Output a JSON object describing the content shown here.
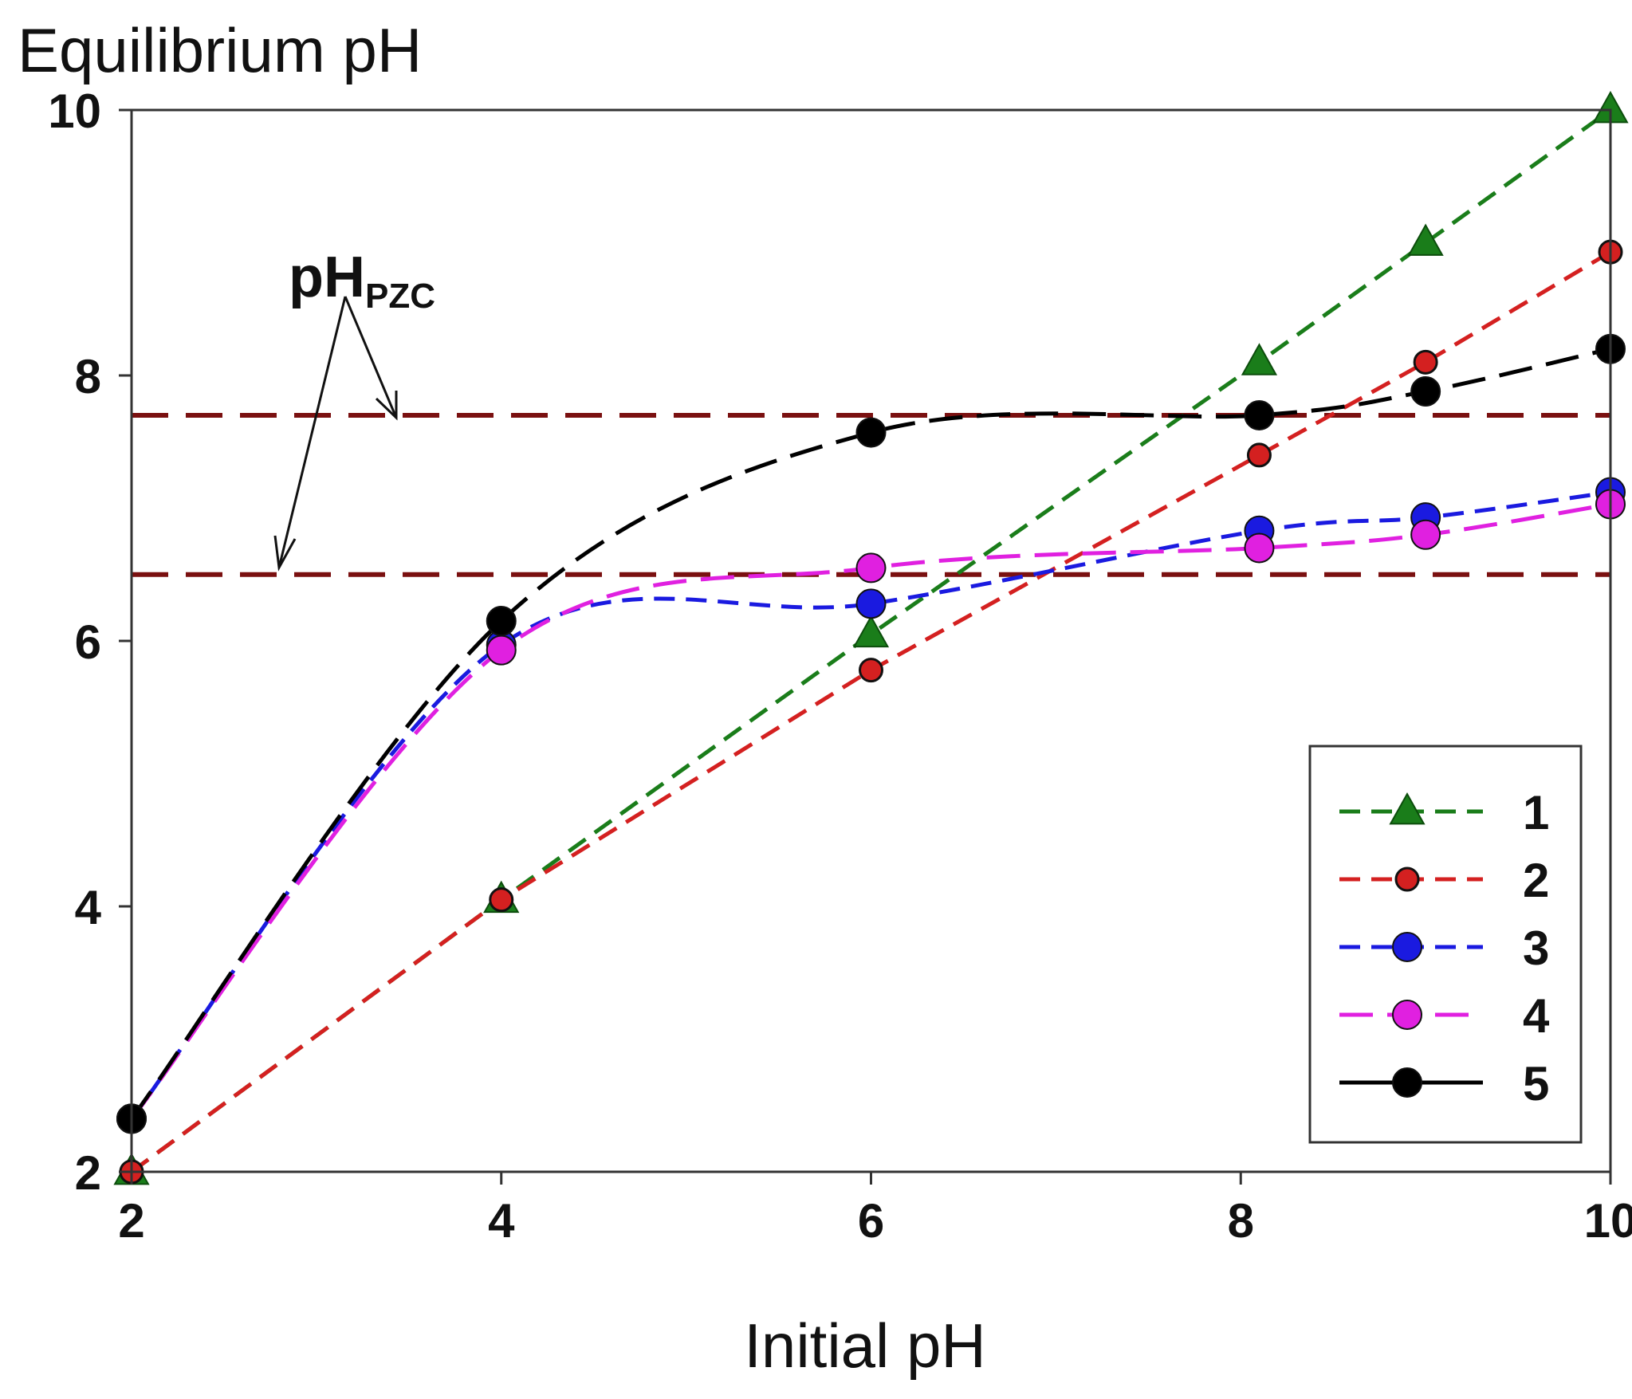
{
  "chart_data": {
    "type": "line",
    "xlabel": "Initial pH",
    "ylabel": "Equilibrium pH",
    "xlim": [
      2,
      10
    ],
    "ylim": [
      2,
      10
    ],
    "xticks": [
      "2",
      "4",
      "6",
      "8",
      "10"
    ],
    "yticks": [
      "2",
      "4",
      "6",
      "8",
      "10"
    ],
    "x_tick_values": [
      2,
      4,
      6,
      8,
      10
    ],
    "y_tick_values": [
      2,
      4,
      6,
      8,
      10
    ],
    "grid": false,
    "legend_position": "bottom-right",
    "annotation": {
      "text_main": "pH",
      "text_sub": "PZC",
      "reference_lines_y": [
        7.7,
        6.5
      ]
    },
    "series": [
      {
        "name": "1",
        "color": "#1a7d1a",
        "marker": "triangle",
        "line_style": "dash",
        "x": [
          2,
          4,
          6,
          8.1,
          9,
          10
        ],
        "y": [
          2,
          4.05,
          6.05,
          8.1,
          9,
          10
        ]
      },
      {
        "name": "2",
        "color": "#d42020",
        "marker": "circle-small",
        "line_style": "dash",
        "x": [
          2,
          4,
          6,
          8.1,
          9,
          10
        ],
        "y": [
          2,
          4.05,
          5.78,
          7.4,
          8.1,
          8.93
        ]
      },
      {
        "name": "3",
        "color": "#1a1ae0",
        "marker": "circle",
        "line_style": "dash",
        "x": [
          2,
          4,
          6,
          8.1,
          9,
          10
        ],
        "y": [
          2.4,
          5.97,
          6.28,
          6.83,
          6.93,
          7.12
        ]
      },
      {
        "name": "4",
        "color": "#e020e0",
        "marker": "circle",
        "line_style": "dash-long",
        "x": [
          2,
          4,
          6,
          8.1,
          9,
          10
        ],
        "y": [
          2.4,
          5.93,
          6.55,
          6.7,
          6.8,
          7.03
        ]
      },
      {
        "name": "5",
        "color": "#000000",
        "marker": "circle",
        "line_style": "dash-long",
        "x": [
          2,
          4,
          6,
          8.1,
          9,
          10
        ],
        "y": [
          2.4,
          6.15,
          7.57,
          7.7,
          7.88,
          8.2
        ]
      }
    ]
  }
}
